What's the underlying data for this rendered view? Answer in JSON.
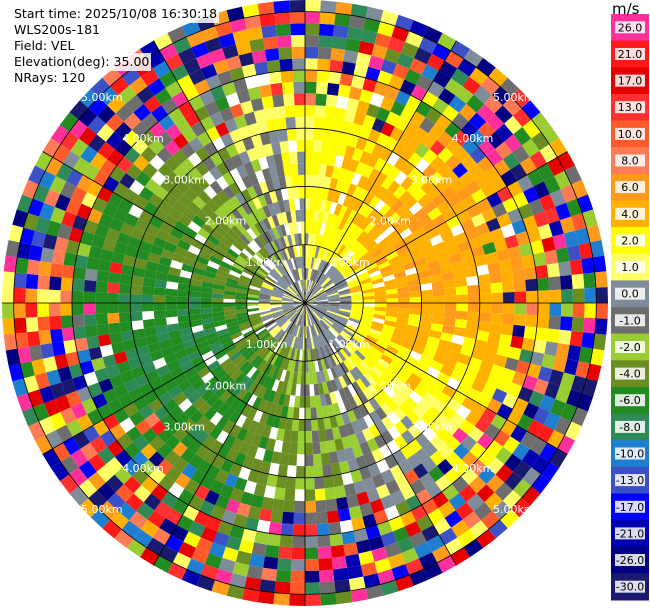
{
  "info": {
    "start_time": "Start time: 2025/10/08 16:30:18",
    "station": "WLS200s-181",
    "field": "Field: VEL",
    "elevation": "Elevation(deg): 35.00",
    "nrays": "NRays: 120"
  },
  "chart_data": {
    "type": "heatmap",
    "projection": "polar-ppi",
    "field": "VEL",
    "rays": 120,
    "elevation_deg": 35.0,
    "max_range_km": 5.2,
    "range_rings": [
      {
        "km": 1,
        "label": "1.00km"
      },
      {
        "km": 2,
        "label": "2.00km"
      },
      {
        "km": 3,
        "label": "3.00km"
      },
      {
        "km": 4,
        "label": "4.00km"
      },
      {
        "km": 5,
        "label": "5.00km"
      }
    ],
    "colorbar": {
      "unit": "m/s",
      "ticks": [
        "26.0",
        "21.0",
        "17.0",
        "13.0",
        "10.0",
        "8.0",
        "6.0",
        "4.0",
        "2.0",
        "1.0",
        "0.0",
        "-1.0",
        "-2.0",
        "-4.0",
        "-6.0",
        "-8.0",
        "-10.0",
        "-13.0",
        "-17.0",
        "-21.0",
        "-26.0",
        "-30.0"
      ],
      "colors": [
        "#ff2f9c",
        "#ff1a1a",
        "#e60000",
        "#ff3030",
        "#ff5a2a",
        "#ff7b55",
        "#ff9a1a",
        "#ffb000",
        "#ffff00",
        "#ffff66",
        "#7f8c9a",
        "#6e6e6e",
        "#9acd32",
        "#6b8e23",
        "#228b22",
        "#2e8b57",
        "#1e7fd0",
        "#3c50c8",
        "#0000ff",
        "#0000b0",
        "#000080",
        "#191970"
      ]
    }
  }
}
